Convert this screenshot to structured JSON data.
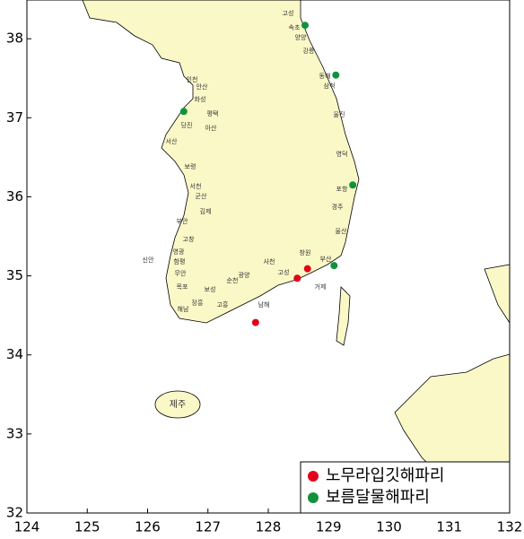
{
  "chart_data": {
    "type": "scatter",
    "xlim": [
      124,
      132
    ],
    "ylim": [
      32,
      38.49
    ],
    "xticks": [
      124,
      125,
      126,
      127,
      128,
      129,
      130,
      131,
      132
    ],
    "yticks": [
      32,
      33,
      34,
      35,
      36,
      37,
      38
    ],
    "legend": "lower right",
    "series": [
      {
        "name": "노무라입깃해파리",
        "color": "#e3001b",
        "x": [
          128.48,
          128.65,
          127.79
        ],
        "y": [
          34.97,
          35.09,
          34.41
        ]
      },
      {
        "name": "보름달물해파리",
        "color": "#10923d",
        "x": [
          128.61,
          129.12,
          126.6,
          129.4,
          129.09
        ],
        "y": [
          38.17,
          37.54,
          37.08,
          36.15,
          35.13
        ]
      }
    ],
    "place_labels": [
      "고성",
      "속초",
      "양양",
      "강릉",
      "동해",
      "삼척",
      "울진",
      "영덕",
      "포항",
      "경주",
      "울산",
      "부산",
      "창원",
      "거제",
      "고성",
      "사천",
      "남해",
      "광양",
      "순천",
      "보성",
      "고흥",
      "장흥",
      "해남",
      "목포",
      "무안",
      "함평",
      "영광",
      "신안",
      "고창",
      "부안",
      "김제",
      "군산",
      "서천",
      "보령",
      "서산",
      "당진",
      "아산",
      "평택",
      "화성",
      "안산",
      "인천",
      "제주"
    ]
  }
}
